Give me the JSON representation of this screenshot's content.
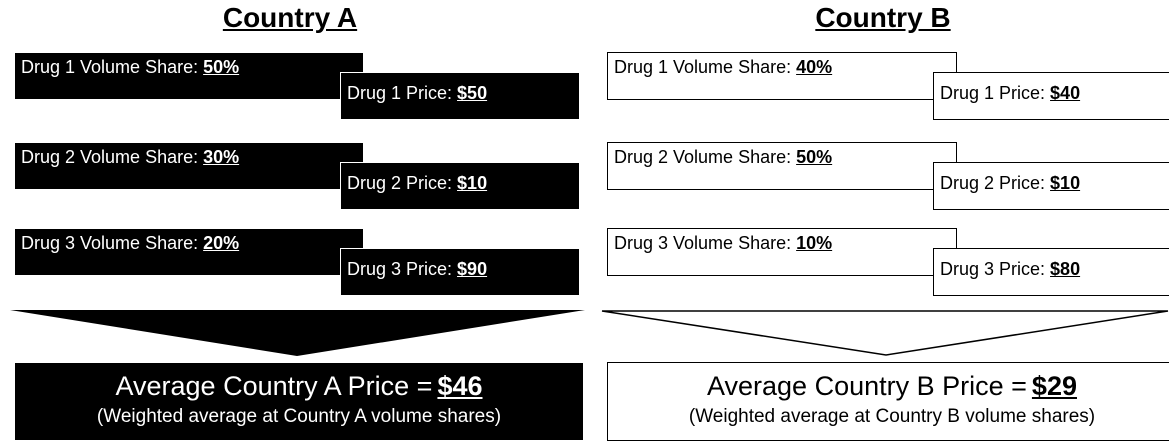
{
  "countries": [
    {
      "title": "Country A",
      "drugs": [
        {
          "share_label": "Drug 1 Volume Share:",
          "share": "50%",
          "price_label": "Drug 1 Price:",
          "price": "$50"
        },
        {
          "share_label": "Drug 2 Volume Share:",
          "share": "30%",
          "price_label": "Drug 2 Price:",
          "price": "$10"
        },
        {
          "share_label": "Drug 3 Volume Share:",
          "share": "20%",
          "price_label": "Drug 3 Price:",
          "price": "$90"
        }
      ],
      "average_label": "Average Country A Price =",
      "average": "$46",
      "note": "(Weighted average at Country A volume shares)"
    },
    {
      "title": "Country B",
      "drugs": [
        {
          "share_label": "Drug 1 Volume Share:",
          "share": "40%",
          "price_label": "Drug 1 Price:",
          "price": "$40"
        },
        {
          "share_label": "Drug 2 Volume Share:",
          "share": "50%",
          "price_label": "Drug 2 Price:",
          "price": "$10"
        },
        {
          "share_label": "Drug 3 Volume Share:",
          "share": "10%",
          "price_label": "Drug 3 Price:",
          "price": "$80"
        }
      ],
      "average_label": "Average Country B Price =",
      "average": "$29",
      "note": "(Weighted average at Country B volume shares)"
    }
  ]
}
